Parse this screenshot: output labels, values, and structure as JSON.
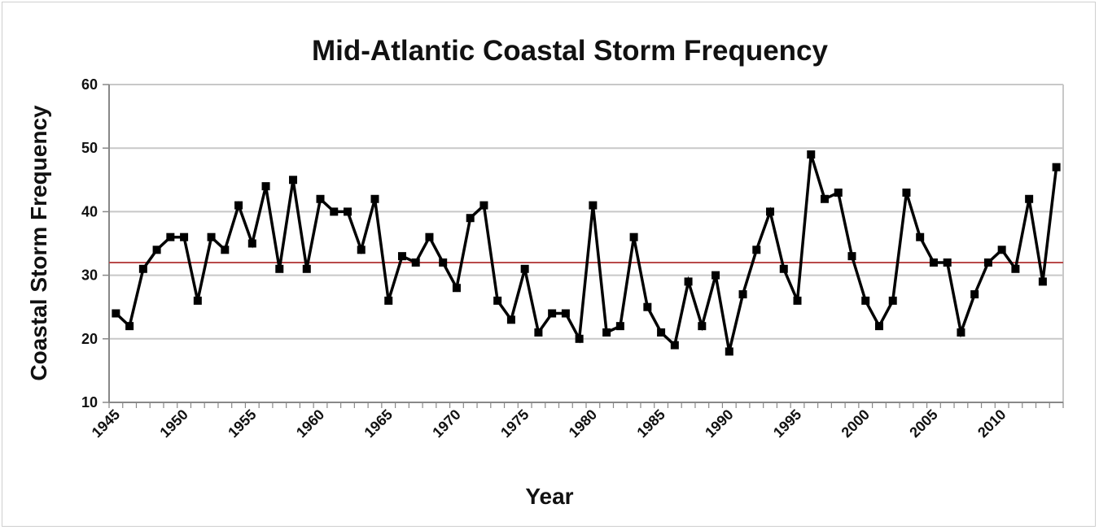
{
  "chart_data": {
    "type": "line",
    "title": "Mid-Atlantic Coastal Storm Frequency",
    "xlabel": "Year",
    "ylabel": "Coastal Storm Frequency",
    "xlim": [
      1945,
      2014
    ],
    "ylim": [
      10,
      60
    ],
    "y_ticks": [
      "10",
      "20",
      "30",
      "40",
      "50",
      "60"
    ],
    "x_ticks": [
      "1945",
      "1950",
      "1955",
      "1960",
      "1965",
      "1970",
      "1975",
      "1980",
      "1985",
      "1990",
      "1995",
      "2000",
      "2005",
      "2010"
    ],
    "grid": "horizontal",
    "legend": "none",
    "series": [
      {
        "marker": "square",
        "color": "#000000",
        "x": [
          1945,
          1946,
          1947,
          1948,
          1949,
          1950,
          1951,
          1952,
          1953,
          1954,
          1955,
          1956,
          1957,
          1958,
          1959,
          1960,
          1961,
          1962,
          1963,
          1964,
          1965,
          1966,
          1967,
          1968,
          1969,
          1970,
          1971,
          1972,
          1973,
          1974,
          1975,
          1976,
          1977,
          1978,
          1979,
          1980,
          1981,
          1982,
          1983,
          1984,
          1985,
          1986,
          1987,
          1988,
          1989,
          1990,
          1991,
          1992,
          1993,
          1994,
          1995,
          1996,
          1997,
          1998,
          1999,
          2000,
          2001,
          2002,
          2003,
          2004,
          2005,
          2006,
          2007,
          2008,
          2009,
          2010,
          2011,
          2012,
          2013,
          2014
        ],
        "y": [
          24,
          22,
          31,
          34,
          36,
          36,
          26,
          36,
          34,
          41,
          35,
          44,
          31,
          45,
          31,
          42,
          40,
          40,
          34,
          42,
          26,
          33,
          32,
          36,
          32,
          28,
          39,
          41,
          26,
          23,
          31,
          21,
          24,
          24,
          20,
          41,
          21,
          22,
          36,
          25,
          21,
          19,
          29,
          22,
          30,
          18,
          27,
          34,
          40,
          31,
          26,
          49,
          42,
          43,
          33,
          26,
          22,
          26,
          43,
          36,
          32,
          32,
          21,
          27,
          32,
          34,
          31,
          42,
          29,
          47
        ]
      }
    ],
    "reference_line": {
      "y": 32,
      "color": "#b84a4a"
    }
  }
}
